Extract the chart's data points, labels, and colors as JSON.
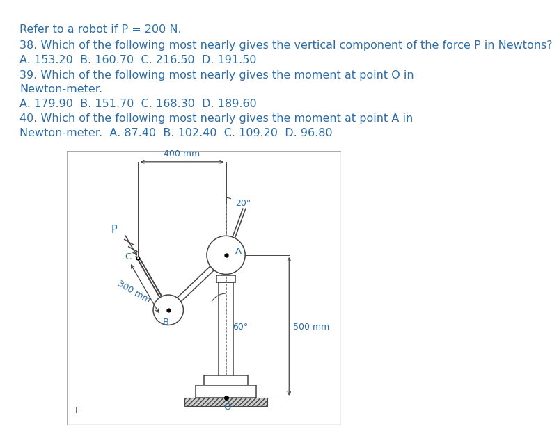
{
  "bg_color": "#ffffff",
  "text_color": "#2e6da4",
  "diagram_line_color": "#444444",
  "title_line1": "Refer to a robot if P = 200 N.",
  "q38": "38. Which of the following most nearly gives the vertical component of the force P in Newtons?",
  "q38_choices": "A. 153.20  B. 160.70  C. 216.50  D. 191.50",
  "q39_line1": "39. Which of the following most nearly gives the moment at point O in",
  "q39_line2": "Newton-meter.",
  "q39_choices": "A. 179.90  B. 151.70  C. 168.30  D. 189.60",
  "q40_line1": "40. Which of the following most nearly gives the moment at point A in",
  "q40_line2": "Newton-meter.  A. 87.40  B. 102.40  C. 109.20  D. 96.80",
  "label_20deg": "20°",
  "label_400mm": "400 mm",
  "label_300mm": "300 mm",
  "label_500mm": "500 mm",
  "label_60deg": "60°",
  "label_P": "P",
  "label_A": "A",
  "label_B": "B",
  "label_C": "C",
  "label_O": "O",
  "label_r": "Γ",
  "font_size_text": 11.5,
  "font_size_diagram": 9.5
}
